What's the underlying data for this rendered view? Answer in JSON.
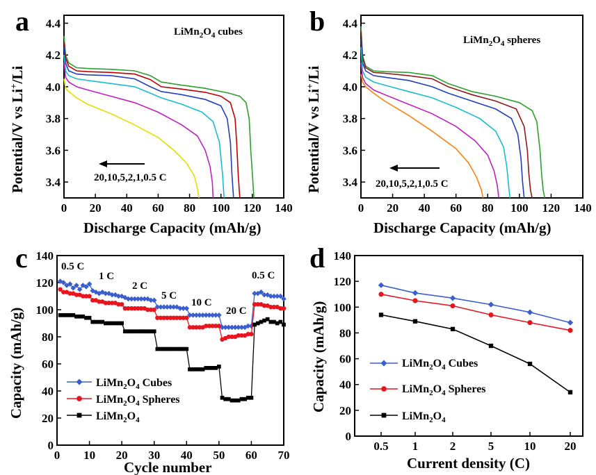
{
  "chart_data": [
    {
      "panel": "a",
      "type": "line",
      "annotation": "LiMn2O4 cubes",
      "xlabel": "Discharge Capacity (mAh/g)",
      "ylabel": "Potential/V  vs Li+/Li",
      "xlim": [
        0,
        140
      ],
      "ylim": [
        3.3,
        4.45
      ],
      "xticks": [
        "0",
        "20",
        "40",
        "60",
        "80",
        "100",
        "120",
        "140"
      ],
      "yticks": [
        "3.4",
        "3.6",
        "3.8",
        "4.0",
        "4.2",
        "4.4"
      ],
      "arrow_label": "20,10,5,2,1,0.5 C",
      "series": [
        {
          "rate": "0.5 C",
          "color": "#2ca02c",
          "x": [
            0,
            1,
            3,
            8,
            15,
            30,
            45,
            55,
            62,
            75,
            90,
            105,
            112,
            116,
            118,
            119,
            120,
            121
          ],
          "y": [
            4.32,
            4.2,
            4.15,
            4.12,
            4.115,
            4.11,
            4.1,
            4.07,
            4.03,
            4.01,
            3.99,
            3.96,
            3.94,
            3.9,
            3.8,
            3.6,
            3.45,
            3.3
          ]
        },
        {
          "rate": "1 C",
          "color": "#c00000",
          "x": [
            0,
            1,
            3,
            8,
            15,
            30,
            45,
            55,
            62,
            75,
            90,
            100,
            106,
            109,
            110,
            111,
            112
          ],
          "y": [
            4.28,
            4.18,
            4.13,
            4.1,
            4.095,
            4.09,
            4.08,
            4.045,
            4.0,
            3.985,
            3.965,
            3.94,
            3.9,
            3.8,
            3.65,
            3.45,
            3.3
          ]
        },
        {
          "rate": "2 C",
          "color": "#1f3fbf",
          "x": [
            0,
            1,
            3,
            8,
            15,
            30,
            45,
            55,
            62,
            75,
            90,
            100,
            104,
            106,
            107,
            108
          ],
          "y": [
            4.25,
            4.15,
            4.1,
            4.08,
            4.075,
            4.07,
            4.05,
            4.0,
            3.97,
            3.95,
            3.92,
            3.88,
            3.8,
            3.65,
            3.45,
            3.3
          ]
        },
        {
          "rate": "5 C",
          "color": "#17becf",
          "x": [
            0,
            1,
            3,
            8,
            15,
            30,
            45,
            55,
            62,
            75,
            88,
            95,
            99,
            101,
            102
          ],
          "y": [
            4.2,
            4.1,
            4.07,
            4.05,
            4.04,
            4.02,
            4.0,
            3.96,
            3.93,
            3.89,
            3.84,
            3.78,
            3.65,
            3.45,
            3.3
          ]
        },
        {
          "rate": "10 C",
          "color": "#c020c0",
          "x": [
            0,
            1,
            3,
            8,
            15,
            30,
            45,
            60,
            75,
            85,
            90,
            93,
            94.5,
            95
          ],
          "y": [
            4.15,
            4.06,
            4.03,
            4.0,
            3.98,
            3.94,
            3.9,
            3.84,
            3.76,
            3.69,
            3.6,
            3.5,
            3.4,
            3.3
          ]
        },
        {
          "rate": "20 C",
          "color": "#e0e000",
          "x": [
            0,
            1,
            3,
            8,
            15,
            30,
            45,
            60,
            70,
            78,
            83,
            85,
            86
          ],
          "y": [
            4.05,
            3.99,
            3.97,
            3.93,
            3.89,
            3.83,
            3.76,
            3.68,
            3.6,
            3.52,
            3.44,
            3.36,
            3.3
          ]
        }
      ]
    },
    {
      "panel": "b",
      "type": "line",
      "annotation": "LiMn2O4 spheres",
      "xlabel": "Discharge Capacity (mAh/g)",
      "ylabel": "Potential/V  vs Li+/Li",
      "xlim": [
        0,
        140
      ],
      "ylim": [
        3.3,
        4.45
      ],
      "xticks": [
        "0",
        "20",
        "40",
        "60",
        "80",
        "100",
        "120",
        "140"
      ],
      "yticks": [
        "3.4",
        "3.6",
        "3.8",
        "4.0",
        "4.2",
        "4.4"
      ],
      "arrow_label": "20,10,5,2,1,0.5 C",
      "series": [
        {
          "rate": "0.5 C",
          "color": "#2ca02c",
          "x": [
            0,
            1,
            3,
            8,
            15,
            30,
            45,
            55,
            70,
            85,
            100,
            108,
            111,
            113,
            114,
            115,
            116
          ],
          "y": [
            4.38,
            4.2,
            4.13,
            4.1,
            4.095,
            4.09,
            4.07,
            4.02,
            3.97,
            3.94,
            3.9,
            3.85,
            3.78,
            3.6,
            3.45,
            3.35,
            3.3
          ]
        },
        {
          "rate": "1 C",
          "color": "#8b1a1a",
          "x": [
            0,
            1,
            3,
            8,
            15,
            30,
            45,
            55,
            70,
            85,
            98,
            103,
            105,
            106,
            107,
            108
          ],
          "y": [
            4.35,
            4.18,
            4.12,
            4.09,
            4.085,
            4.07,
            4.05,
            4.0,
            3.95,
            3.91,
            3.86,
            3.75,
            3.6,
            3.45,
            3.35,
            3.3
          ]
        },
        {
          "rate": "2 C",
          "color": "#1f3fbf",
          "x": [
            0,
            1,
            3,
            8,
            15,
            30,
            45,
            55,
            70,
            85,
            95,
            99,
            101,
            102,
            103
          ],
          "y": [
            4.3,
            4.15,
            4.1,
            4.07,
            4.06,
            4.04,
            4.0,
            3.96,
            3.91,
            3.86,
            3.8,
            3.7,
            3.55,
            3.4,
            3.3
          ]
        },
        {
          "rate": "5 C",
          "color": "#17becf",
          "x": [
            0,
            1,
            3,
            8,
            15,
            30,
            45,
            60,
            75,
            85,
            90,
            92,
            93,
            94
          ],
          "y": [
            4.25,
            4.1,
            4.06,
            4.03,
            4.01,
            3.97,
            3.93,
            3.87,
            3.8,
            3.72,
            3.62,
            3.5,
            3.4,
            3.3
          ]
        },
        {
          "rate": "10 C",
          "color": "#c020c0",
          "x": [
            0,
            1,
            3,
            8,
            15,
            30,
            45,
            60,
            72,
            80,
            84,
            86,
            87
          ],
          "y": [
            4.15,
            4.06,
            4.02,
            3.98,
            3.95,
            3.89,
            3.83,
            3.75,
            3.66,
            3.57,
            3.47,
            3.38,
            3.3
          ]
        },
        {
          "rate": "20 C",
          "color": "#ff7f0e",
          "x": [
            0,
            1,
            3,
            8,
            15,
            30,
            45,
            60,
            68,
            73,
            76,
            77
          ],
          "y": [
            4.08,
            4.03,
            4.0,
            3.96,
            3.91,
            3.82,
            3.72,
            3.61,
            3.52,
            3.43,
            3.35,
            3.3
          ]
        }
      ]
    },
    {
      "panel": "c",
      "type": "line",
      "xlabel": "Cycle number",
      "ylabel": "Capacity (mAh/g)",
      "xlim": [
        0,
        70
      ],
      "ylim": [
        0,
        140
      ],
      "xticks": [
        "0",
        "10",
        "20",
        "30",
        "40",
        "50",
        "60",
        "70"
      ],
      "yticks": [
        "0",
        "20",
        "40",
        "60",
        "80",
        "100",
        "120",
        "140"
      ],
      "rate_labels": [
        "0.5 C",
        "1 C",
        "2 C",
        "5 C",
        "10 C",
        "20 C",
        "0.5 C"
      ],
      "series": [
        {
          "name": "LiMn2O4 Cubes",
          "color": "#3a5fcd",
          "marker": "diamond",
          "x": [
            1,
            2,
            3,
            4,
            5,
            6,
            7,
            8,
            9,
            10,
            11,
            12,
            13,
            14,
            15,
            16,
            17,
            18,
            19,
            20,
            21,
            22,
            23,
            24,
            25,
            26,
            27,
            28,
            29,
            30,
            31,
            32,
            33,
            34,
            35,
            36,
            37,
            38,
            39,
            40,
            41,
            42,
            43,
            44,
            45,
            46,
            47,
            48,
            49,
            50,
            51,
            52,
            53,
            54,
            55,
            56,
            57,
            58,
            59,
            60,
            61,
            62,
            63,
            64,
            65,
            66,
            67,
            68,
            69,
            70
          ],
          "y": [
            121,
            120,
            118,
            119,
            116,
            118,
            115,
            118,
            117,
            119,
            114,
            113,
            112,
            113,
            112,
            112,
            111,
            111,
            110,
            110,
            109,
            108,
            108,
            108,
            108,
            108,
            108,
            108,
            107,
            107,
            102,
            102,
            102,
            102,
            102,
            102,
            102,
            101,
            101,
            101,
            96,
            96,
            96,
            96,
            96,
            96,
            96,
            96,
            96,
            96,
            87,
            87,
            87,
            87,
            87,
            87,
            87,
            87,
            88,
            88,
            112,
            112,
            113,
            111,
            111,
            110,
            110,
            110,
            110,
            108
          ]
        },
        {
          "name": "LiMn2O4 Spheres",
          "color": "#e8141e",
          "marker": "circle",
          "x": [
            1,
            2,
            3,
            4,
            5,
            6,
            7,
            8,
            9,
            10,
            11,
            12,
            13,
            14,
            15,
            16,
            17,
            18,
            19,
            20,
            21,
            22,
            23,
            24,
            25,
            26,
            27,
            28,
            29,
            30,
            31,
            32,
            33,
            34,
            35,
            36,
            37,
            38,
            39,
            40,
            41,
            42,
            43,
            44,
            45,
            46,
            47,
            48,
            49,
            50,
            51,
            52,
            53,
            54,
            55,
            56,
            57,
            58,
            59,
            60,
            61,
            62,
            63,
            64,
            65,
            66,
            67,
            68,
            69,
            70
          ],
          "y": [
            115,
            113,
            113,
            112,
            112,
            111,
            111,
            110,
            110,
            110,
            107,
            107,
            106,
            106,
            105,
            105,
            105,
            105,
            104,
            104,
            101,
            101,
            101,
            101,
            101,
            101,
            101,
            100,
            100,
            100,
            94,
            94,
            94,
            94,
            94,
            94,
            94,
            94,
            94,
            94,
            87,
            87,
            87,
            87,
            87,
            88,
            88,
            88,
            88,
            88,
            78,
            79,
            80,
            80,
            80,
            81,
            81,
            81,
            82,
            82,
            104,
            104,
            104,
            103,
            103,
            102,
            102,
            102,
            101,
            101
          ]
        },
        {
          "name": "LiMn2O4",
          "color": "#000000",
          "marker": "square",
          "x": [
            1,
            2,
            3,
            4,
            5,
            6,
            7,
            8,
            9,
            10,
            11,
            12,
            13,
            14,
            15,
            16,
            17,
            18,
            19,
            20,
            21,
            22,
            23,
            24,
            25,
            26,
            27,
            28,
            29,
            30,
            31,
            32,
            33,
            34,
            35,
            36,
            37,
            38,
            39,
            40,
            41,
            42,
            43,
            44,
            45,
            46,
            47,
            48,
            49,
            50,
            51,
            52,
            53,
            54,
            55,
            56,
            57,
            58,
            59,
            60,
            61,
            62,
            63,
            64,
            65,
            66,
            67,
            68,
            69,
            70
          ],
          "y": [
            96,
            96,
            96,
            96,
            96,
            95,
            95,
            95,
            94,
            94,
            91,
            91,
            91,
            91,
            90,
            90,
            90,
            90,
            90,
            90,
            84,
            84,
            84,
            84,
            84,
            84,
            84,
            84,
            84,
            84,
            71,
            71,
            71,
            71,
            71,
            71,
            71,
            71,
            71,
            71,
            56,
            56,
            56,
            56,
            56,
            57,
            57,
            57,
            57,
            58,
            35,
            34,
            34,
            33,
            33,
            33,
            34,
            34,
            35,
            35,
            89,
            90,
            91,
            92,
            93,
            91,
            91,
            90,
            91,
            89
          ]
        }
      ],
      "legend": "lower-left"
    },
    {
      "panel": "d",
      "type": "line",
      "xlabel": "Current density (C)",
      "ylabel": "Capacity (mAh/g)",
      "categories": [
        "0.5",
        "1",
        "2",
        "5",
        "10",
        "20"
      ],
      "ylim": [
        0,
        140
      ],
      "yticks": [
        "0",
        "20",
        "40",
        "60",
        "80",
        "100",
        "120",
        "140"
      ],
      "series": [
        {
          "name": "LiMn2O4 Cubes",
          "color": "#3a5fcd",
          "marker": "diamond",
          "values": [
            117,
            111,
            107,
            102,
            96,
            88
          ]
        },
        {
          "name": "LiMn2O4 Spheres",
          "color": "#e8141e",
          "marker": "circle",
          "values": [
            110,
            105,
            101,
            94,
            88,
            82
          ]
        },
        {
          "name": "LiMn2O4",
          "color": "#000000",
          "marker": "square",
          "values": [
            94,
            89,
            83,
            70,
            56,
            34
          ]
        }
      ],
      "legend": "lower-left"
    }
  ],
  "labels": {
    "panel_a": "a",
    "panel_b": "b",
    "panel_c": "c",
    "panel_d": "d",
    "ann_a_pre": "LiMn",
    "ann_a_sub2": "2",
    "ann_a_o": "O",
    "ann_a_sub4": "4",
    "ann_a_post": " cubes",
    "ann_b_pre": "LiMn",
    "ann_b_sub2": "2",
    "ann_b_o": "O",
    "ann_b_sub4": "4",
    "ann_b_post": " spheres",
    "ylabel_ab_pre": "Potential/V  vs Li",
    "ylabel_ab_sup": "+",
    "ylabel_ab_post": "/Li",
    "xlabel_ab": "Discharge Capacity (mAh/g)",
    "arrow_label": "20,10,5,2,1,0.5 C",
    "xlabel_c": "Cycle number",
    "xlabel_d": "Current density (C)",
    "ylabel_cd": "Capacity (mAh/g)",
    "leg_li": "LiMn",
    "leg_2": "2",
    "leg_o": "O",
    "leg_4": "4",
    "leg_cubes": " Cubes",
    "leg_spheres": " Spheres",
    "leg_plain": ""
  }
}
